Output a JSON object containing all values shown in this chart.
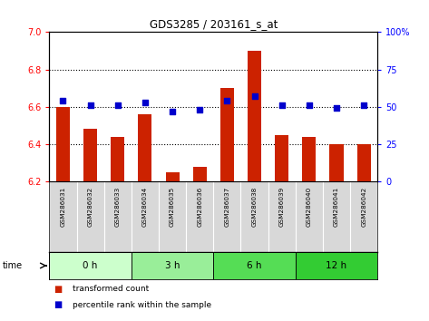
{
  "title": "GDS3285 / 203161_s_at",
  "samples": [
    "GSM286031",
    "GSM286032",
    "GSM286033",
    "GSM286034",
    "GSM286035",
    "GSM286036",
    "GSM286037",
    "GSM286038",
    "GSM286039",
    "GSM286040",
    "GSM286041",
    "GSM286042"
  ],
  "bar_values": [
    6.6,
    6.48,
    6.44,
    6.56,
    6.25,
    6.28,
    6.7,
    6.9,
    6.45,
    6.44,
    6.4,
    6.4
  ],
  "dot_values": [
    54,
    51,
    51,
    53,
    47,
    48,
    54,
    57,
    51,
    51,
    49,
    51
  ],
  "ylim_left": [
    6.2,
    7.0
  ],
  "ylim_right": [
    0,
    100
  ],
  "yticks_left": [
    6.2,
    6.4,
    6.6,
    6.8,
    7.0
  ],
  "yticks_right": [
    0,
    25,
    50,
    75,
    100
  ],
  "bar_color": "#cc2200",
  "dot_color": "#0000cc",
  "grid_color": "#000000",
  "time_groups": [
    {
      "label": "0 h",
      "indices": [
        0,
        1,
        2
      ],
      "color": "#ccffcc"
    },
    {
      "label": "3 h",
      "indices": [
        3,
        4,
        5
      ],
      "color": "#99ee99"
    },
    {
      "label": "6 h",
      "indices": [
        6,
        7,
        8
      ],
      "color": "#55dd55"
    },
    {
      "label": "12 h",
      "indices": [
        9,
        10,
        11
      ],
      "color": "#33cc33"
    }
  ],
  "legend_bar_label": "transformed count",
  "legend_dot_label": "percentile rank within the sample",
  "time_label": "time",
  "background_sample": "#d8d8d8",
  "dotted_yticks": [
    6.4,
    6.6,
    6.8
  ]
}
